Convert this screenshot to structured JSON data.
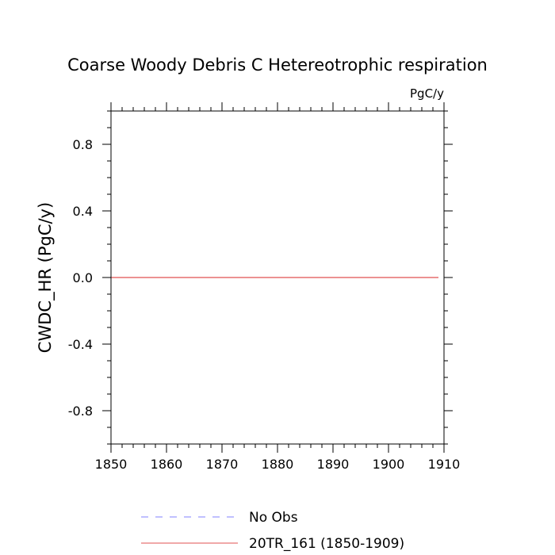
{
  "chart_data": {
    "type": "line",
    "title": "Coarse Woody Debris C Hetereotrophic respiration",
    "units": "PgC/y",
    "xlabel": "",
    "ylabel": "CWDC_HR  (PgC/y)",
    "xlim": [
      1850,
      1910
    ],
    "ylim": [
      -1,
      1
    ],
    "x_ticks": [
      1850,
      1860,
      1870,
      1880,
      1890,
      1900,
      1910
    ],
    "y_ticks": [
      0.8,
      0.4,
      0.0,
      -0.4,
      -0.8
    ],
    "x_tick_labels": [
      "1850",
      "1860",
      "1870",
      "1880",
      "1890",
      "1900",
      "1910"
    ],
    "y_tick_labels": [
      "0.8",
      "0.4",
      "0.0",
      "-0.4",
      "-0.8"
    ],
    "x_minor_step": 2,
    "y_minor_step": 0.1,
    "grid": false,
    "legend_position": "bottom",
    "series": [
      {
        "name": "No Obs",
        "color": "#8080ff",
        "style": "dashed",
        "x": [],
        "y": []
      },
      {
        "name": "20TR_161 (1850-1909)",
        "color": "#e05050",
        "style": "solid",
        "x": [
          1850,
          1909
        ],
        "y": [
          0.0,
          0.0
        ]
      }
    ]
  }
}
